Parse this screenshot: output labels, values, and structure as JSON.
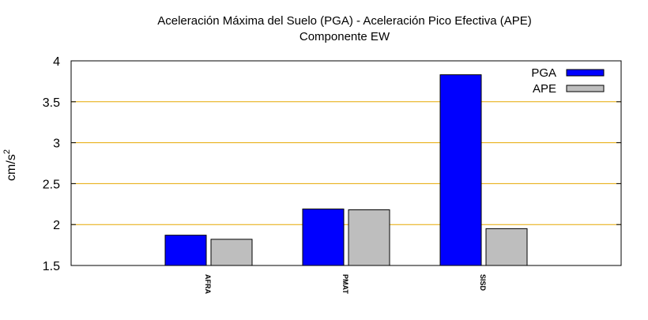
{
  "chart_data": {
    "type": "bar",
    "title": "Aceleración Máxima del Suelo (PGA) -  Aceleración Pico Efectiva (APE)",
    "subtitle": "Componente EW",
    "ylabel": "cm/s²",
    "ylabel_base": "cm/s",
    "ylabel_exp": "2",
    "ylim": [
      1.5,
      4
    ],
    "yticks": [
      "1.5",
      "2",
      "2.5",
      "3",
      "3.5",
      "4"
    ],
    "ytick_values": [
      1.5,
      2,
      2.5,
      3,
      3.5,
      4
    ],
    "categories": [
      "AFRA",
      "PMAT",
      "SISD"
    ],
    "series": [
      {
        "name": "PGA",
        "values": [
          1.87,
          2.19,
          3.83
        ],
        "color": "#0000ff"
      },
      {
        "name": "APE",
        "values": [
          1.82,
          2.18,
          1.95
        ],
        "color": "#bebebe"
      }
    ],
    "grid_color": "#e6a800",
    "grid": true,
    "legend_position": "top-right"
  }
}
